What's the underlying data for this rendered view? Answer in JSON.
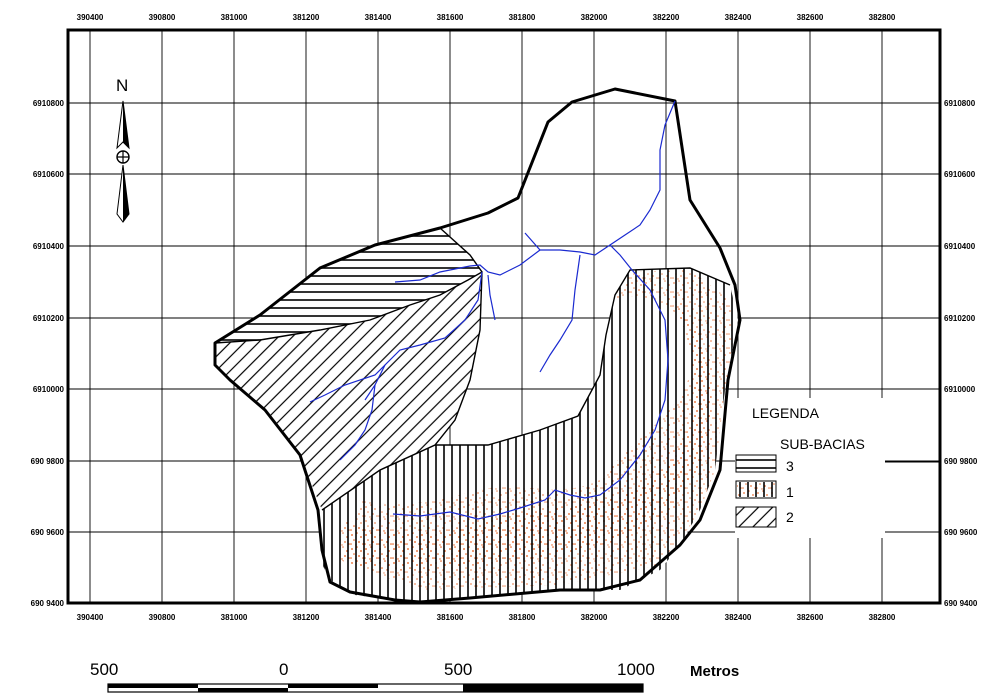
{
  "map": {
    "x_ticks": [
      "390400",
      "390800",
      "381000",
      "381200",
      "381400",
      "381600",
      "381800",
      "382000",
      "382200",
      "382400",
      "382600",
      "382800"
    ],
    "y_ticks": [
      "6910800",
      "6910600",
      "6910400",
      "6910200",
      "6910000",
      "690 9800",
      "690 9600",
      "690 9400"
    ],
    "grid": true
  },
  "north_arrow": {
    "label": "N"
  },
  "legend": {
    "title": "LEGENDA",
    "subtitle": "SUB-BACIAS",
    "items": [
      {
        "label": "3",
        "pattern": "horizontal-hatch"
      },
      {
        "label": "1",
        "pattern": "orange-stipple"
      },
      {
        "label": "2",
        "pattern": "diagonal-hatch"
      }
    ]
  },
  "scale_bar": {
    "labels": [
      "500",
      "0",
      "500",
      "1000"
    ],
    "unit": "Metros"
  },
  "colors": {
    "stream": "#1a2ad0",
    "stipple": "#e8733a",
    "outline": "#000000"
  }
}
